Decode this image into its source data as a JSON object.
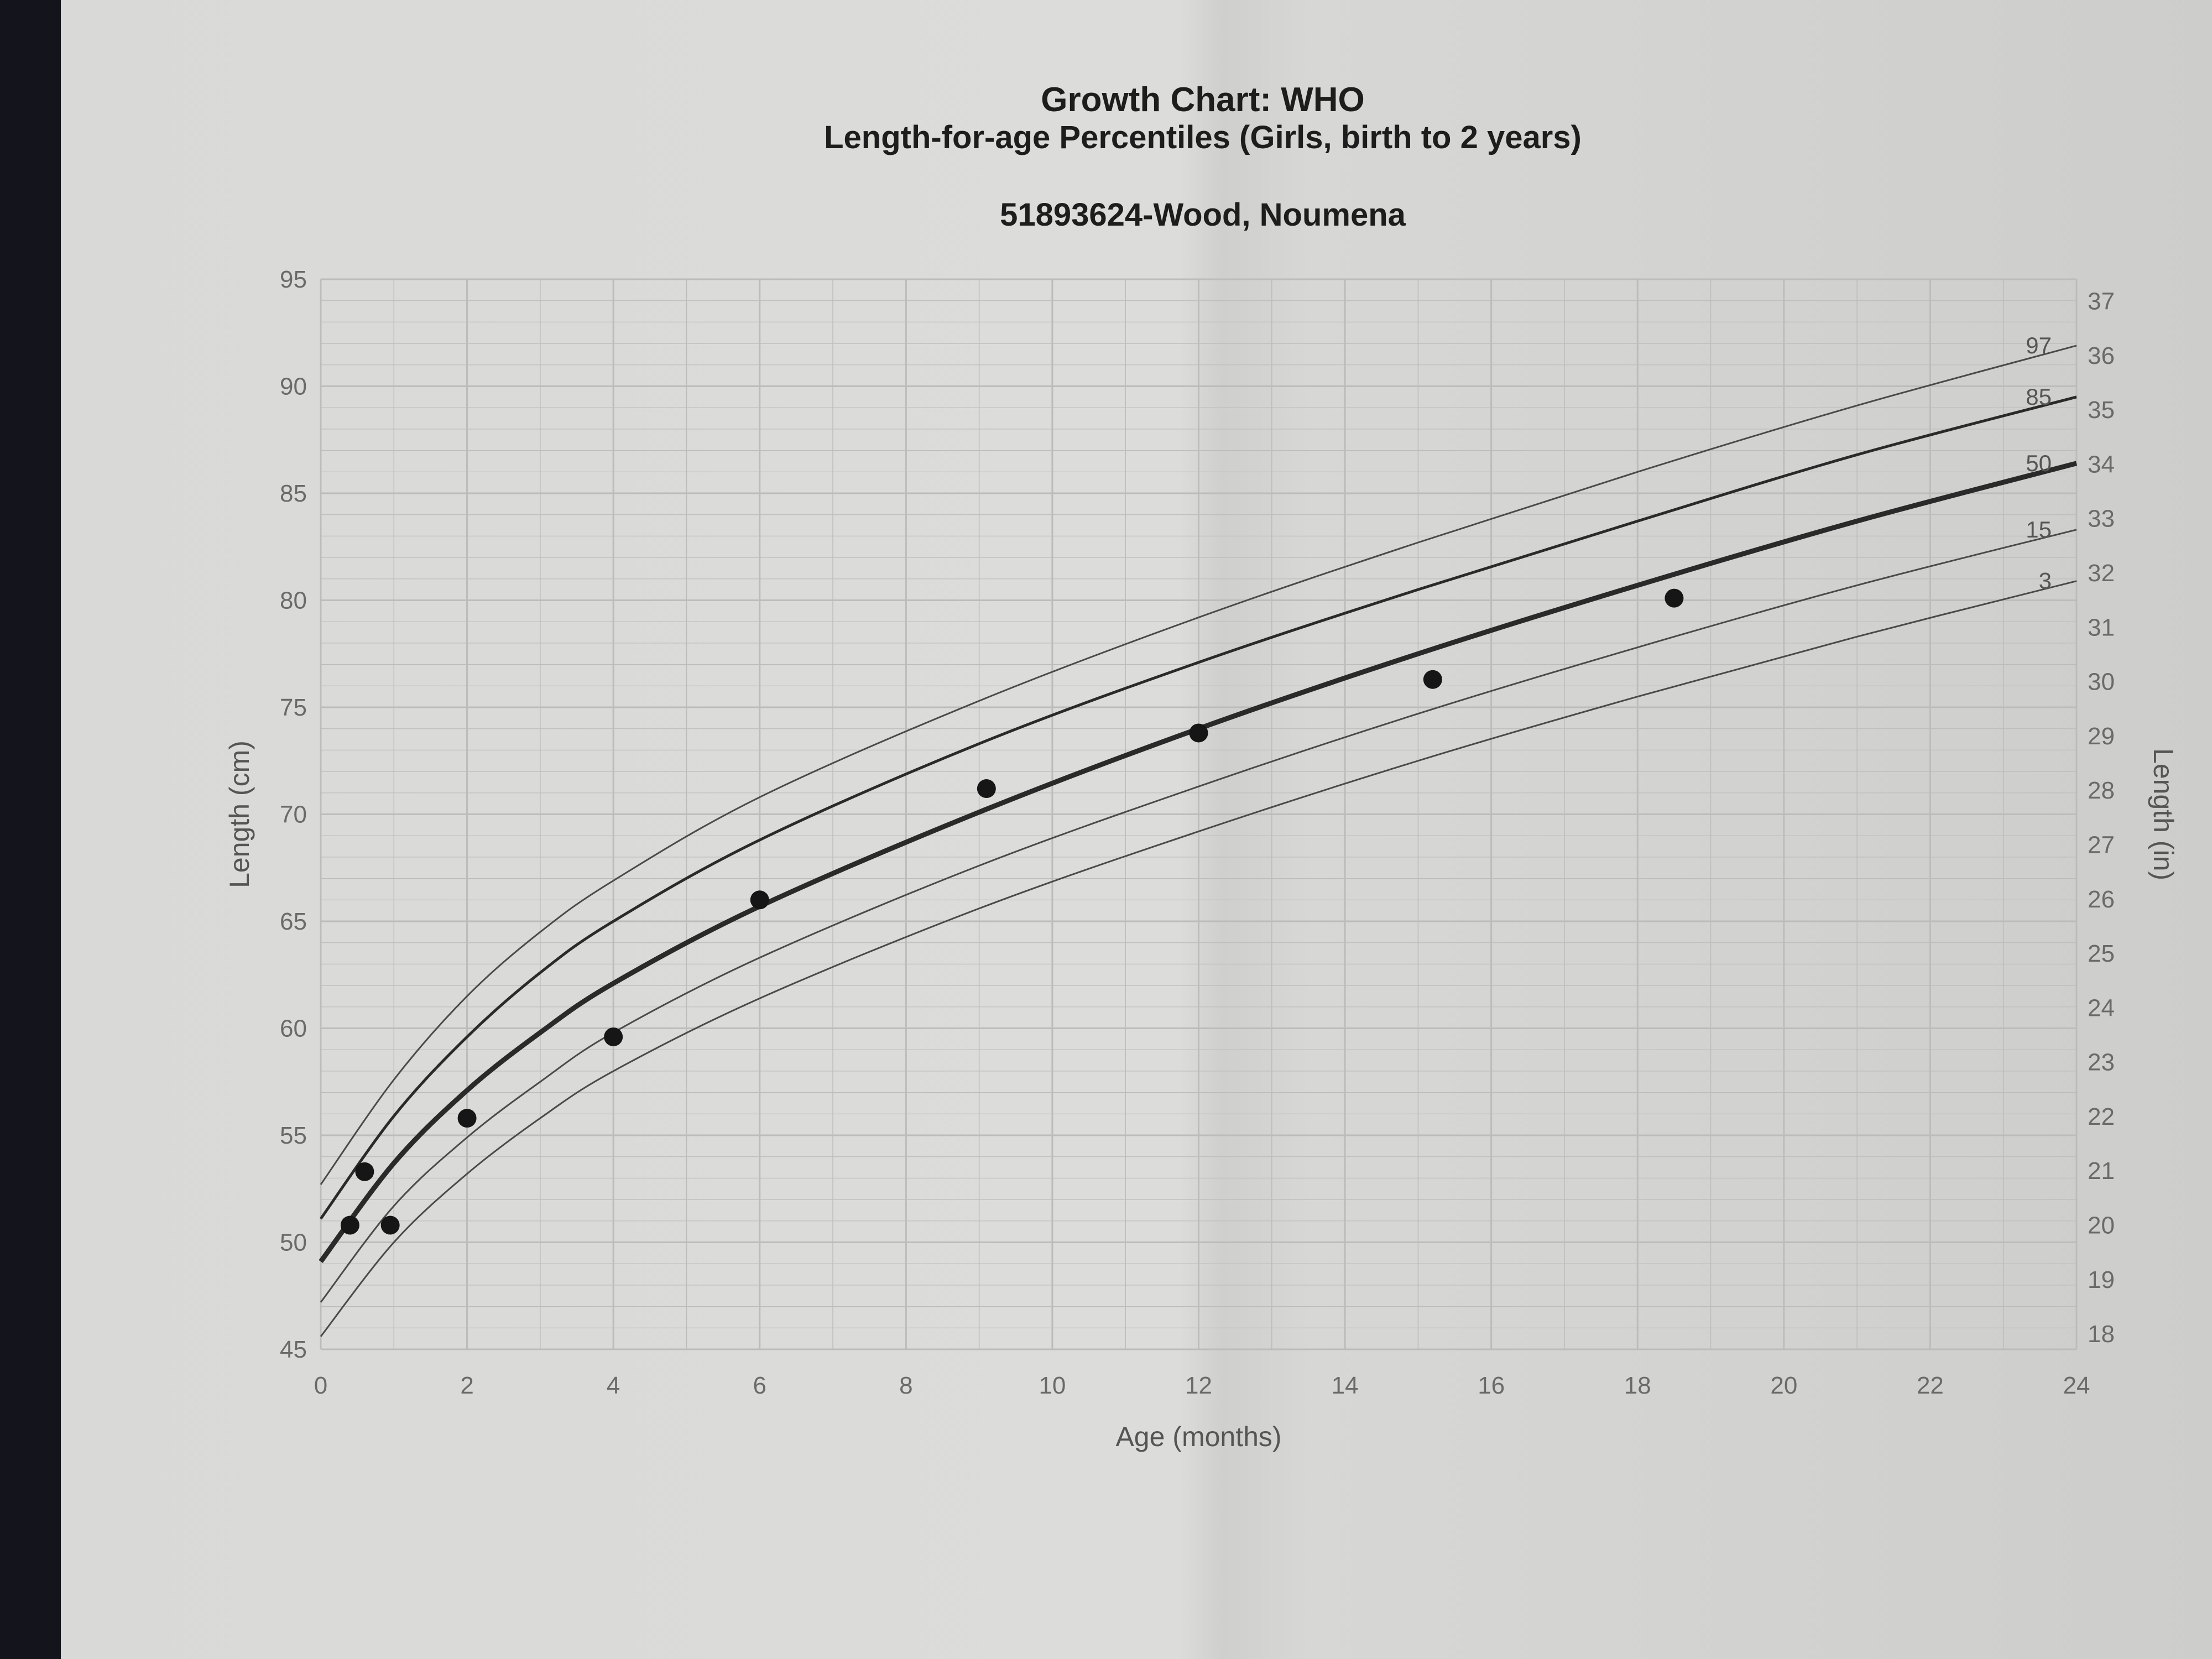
{
  "chart_data": {
    "type": "line",
    "title": "Growth Chart: WHO",
    "subtitle": "Length-for-age Percentiles (Girls, birth to 2 years)",
    "patient": "51893624-Wood, Noumena",
    "xlabel": "Age (months)",
    "ylabel": "Length (cm)",
    "ylabel_right": "Length (in)",
    "xlim": [
      0,
      24
    ],
    "ylim": [
      45,
      95
    ],
    "ylim_right": [
      18,
      37
    ],
    "x_ticks": [
      "0",
      "2",
      "4",
      "6",
      "8",
      "10",
      "12",
      "14",
      "16",
      "18",
      "20",
      "22",
      "24"
    ],
    "y_ticks": [
      "45",
      "50",
      "55",
      "60",
      "65",
      "70",
      "75",
      "80",
      "85",
      "90",
      "95"
    ],
    "y_ticks_right": [
      "18",
      "19",
      "20",
      "21",
      "22",
      "23",
      "24",
      "25",
      "26",
      "27",
      "28",
      "29",
      "30",
      "31",
      "32",
      "33",
      "34",
      "35",
      "36",
      "37"
    ],
    "grid": true,
    "percentile_x": [
      0,
      1,
      2,
      3,
      4,
      6,
      9,
      12,
      15,
      18,
      21,
      24
    ],
    "series": [
      {
        "name": "97",
        "values": [
          52.7,
          57.6,
          61.5,
          64.5,
          66.9,
          70.8,
          75.3,
          79.2,
          82.7,
          86.0,
          89.1,
          91.9
        ]
      },
      {
        "name": "85",
        "values": [
          51.1,
          55.9,
          59.6,
          62.6,
          65.0,
          68.8,
          73.3,
          77.1,
          80.5,
          83.7,
          86.8,
          89.5
        ]
      },
      {
        "name": "50",
        "values": [
          49.1,
          53.7,
          57.1,
          59.8,
          62.1,
          65.7,
          70.1,
          74.0,
          77.5,
          80.7,
          83.7,
          86.4
        ]
      },
      {
        "name": "15",
        "values": [
          47.2,
          51.7,
          54.9,
          57.5,
          59.8,
          63.3,
          67.6,
          71.3,
          74.7,
          77.8,
          80.7,
          83.3
        ]
      },
      {
        "name": "3",
        "values": [
          45.6,
          50.0,
          53.2,
          55.8,
          58.0,
          61.4,
          65.6,
          69.2,
          72.5,
          75.5,
          78.3,
          80.9
        ]
      }
    ],
    "points": [
      {
        "x": 0.4,
        "y": 50.8
      },
      {
        "x": 0.6,
        "y": 53.3
      },
      {
        "x": 0.95,
        "y": 50.8
      },
      {
        "x": 2.0,
        "y": 55.8
      },
      {
        "x": 4.0,
        "y": 59.6
      },
      {
        "x": 6.0,
        "y": 66.0
      },
      {
        "x": 9.1,
        "y": 71.2
      },
      {
        "x": 12.0,
        "y": 73.8
      },
      {
        "x": 15.2,
        "y": 76.3
      },
      {
        "x": 18.5,
        "y": 80.1
      }
    ]
  }
}
